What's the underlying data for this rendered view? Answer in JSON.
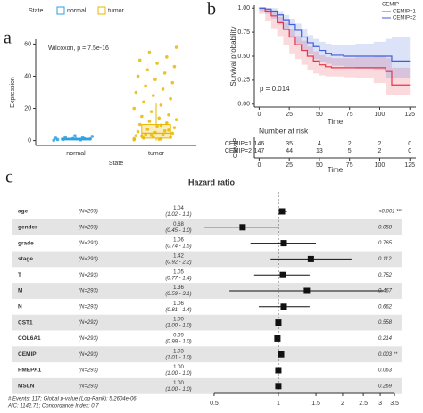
{
  "chart_data": [
    {
      "type": "box",
      "panel": "a",
      "legend_title": "State",
      "annotation": "Wilcoxon, p = 7.5e-16",
      "xlabel": "State",
      "ylabel": "Expression",
      "categories": [
        "normal",
        "tumor"
      ],
      "series": [
        {
          "name": "normal",
          "color": "#2E9FDF",
          "box": {
            "min": 0,
            "q1": 0.4,
            "median": 0.9,
            "q3": 1.4,
            "max": 2.8
          },
          "points": [
            0.2,
            0.5,
            0.8,
            1.0,
            1.2,
            1.5,
            1.8,
            2.2,
            2.6,
            3.0,
            0.6,
            1.1
          ]
        },
        {
          "name": "tumor",
          "color": "#E7B800",
          "box": {
            "min": 0,
            "q1": 1.5,
            "median": 4.5,
            "q3": 10,
            "max": 23
          },
          "points": [
            0.5,
            1,
            1.5,
            2,
            2.5,
            3,
            3.5,
            4,
            4.5,
            5,
            5.5,
            6,
            7,
            8,
            9,
            10,
            11,
            12,
            13,
            14,
            15,
            16,
            18,
            20,
            22,
            24,
            26,
            28,
            30,
            32,
            34,
            36,
            38,
            40,
            42,
            44,
            46,
            48,
            50,
            52,
            55,
            58,
            0.8,
            2.8,
            6.5,
            3.2,
            1.2,
            9.5
          ]
        }
      ],
      "ylim": [
        -3,
        63
      ],
      "yticks": [
        0,
        20,
        40,
        60
      ]
    },
    {
      "type": "survival",
      "panel": "b",
      "legend_title": "CEMIP",
      "annotation": "p = 0.014",
      "xlabel": "Time",
      "ylabel": "Survival probability",
      "x": [
        0,
        5,
        10,
        15,
        20,
        25,
        30,
        35,
        40,
        45,
        50,
        55,
        60,
        70,
        80,
        95,
        105,
        110,
        125
      ],
      "series": [
        {
          "name": "CEMIP=1",
          "color": "#E7334A",
          "values": [
            1,
            0.97,
            0.92,
            0.85,
            0.78,
            0.7,
            0.62,
            0.56,
            0.5,
            0.45,
            0.41,
            0.39,
            0.38,
            0.38,
            0.38,
            0.38,
            0.34,
            0.2,
            0.2
          ],
          "ci_lower": [
            1,
            0.94,
            0.87,
            0.79,
            0.71,
            0.62,
            0.53,
            0.47,
            0.41,
            0.36,
            0.32,
            0.3,
            0.29,
            0.29,
            0.28,
            0.27,
            0.22,
            0.1,
            0.1
          ],
          "ci_upper": [
            1,
            1,
            0.97,
            0.91,
            0.85,
            0.78,
            0.71,
            0.66,
            0.6,
            0.55,
            0.51,
            0.49,
            0.48,
            0.48,
            0.49,
            0.5,
            0.48,
            0.38,
            0.38
          ]
        },
        {
          "name": "CEMIP=2",
          "color": "#3F5FD8",
          "values": [
            1,
            0.99,
            0.97,
            0.93,
            0.88,
            0.83,
            0.77,
            0.7,
            0.64,
            0.6,
            0.56,
            0.53,
            0.51,
            0.5,
            0.5,
            0.5,
            0.5,
            0.45,
            0.45
          ],
          "ci_lower": [
            1,
            0.97,
            0.94,
            0.89,
            0.83,
            0.77,
            0.7,
            0.63,
            0.56,
            0.52,
            0.47,
            0.44,
            0.42,
            0.4,
            0.39,
            0.37,
            0.35,
            0.27,
            0.27
          ],
          "ci_upper": [
            1,
            1,
            1,
            0.97,
            0.93,
            0.89,
            0.84,
            0.78,
            0.72,
            0.68,
            0.65,
            0.63,
            0.62,
            0.62,
            0.63,
            0.65,
            0.68,
            0.7,
            0.7
          ]
        }
      ],
      "xlim": [
        -4,
        130
      ],
      "xticks": [
        0,
        25,
        50,
        75,
        100,
        125
      ],
      "ylim": [
        -0.03,
        1.03
      ],
      "yticks": [
        {
          "value": 0,
          "label": "0.00"
        },
        {
          "value": 0.25,
          "label": "0.25"
        },
        {
          "value": 0.5,
          "label": "0.50"
        },
        {
          "value": 0.75,
          "label": "0.75"
        },
        {
          "value": 1,
          "label": "1.00"
        }
      ],
      "risk_table": {
        "title": "Number at risk",
        "ylabel": "CEMIP",
        "xlabel": "Time",
        "rows": [
          {
            "name": "CEMIP=1",
            "values": [
              "146",
              "35",
              "4",
              "2",
              "2",
              "0"
            ]
          },
          {
            "name": "CEMIP=2",
            "values": [
              "147",
              "44",
              "13",
              "5",
              "2",
              "0"
            ]
          }
        ]
      }
    },
    {
      "type": "forest",
      "panel": "c",
      "title": "Hazard ratio",
      "categories": [
        "age",
        "gender",
        "grade",
        "stage",
        "T",
        "M",
        "N",
        "CST1",
        "COL6A1",
        "CEMIP",
        "PMEPA1",
        "MSLN"
      ],
      "n_labels": [
        "(N=293)",
        "(N=293)",
        "(N=293)",
        "(N=293)",
        "(N=293)",
        "(N=293)",
        "(N=293)",
        "(N=292)",
        "(N=293)",
        "(N=293)",
        "(N=293)",
        "(N=293)"
      ],
      "values": [
        1.04,
        0.68,
        1.06,
        1.42,
        1.05,
        1.36,
        1.06,
        1,
        0.99,
        1.03,
        1,
        1
      ],
      "value_labels": [
        "1.04",
        "0.68",
        "1.06",
        "1.42",
        "1.05",
        "1.36",
        "1.06",
        "1.00",
        "0.99",
        "1.03",
        "1.00",
        "1.00"
      ],
      "ci_labels": [
        "(1.02 - 1.1)",
        "(0.45 - 1.0)",
        "(0.74 - 1.5)",
        "(0.92 - 2.2)",
        "(0.77 - 1.4)",
        "(0.59 - 3.1)",
        "(0.81 - 1.4)",
        "(1.00 - 1.0)",
        "(0.99 - 1.0)",
        "(1.01 - 1.0)",
        "(1.00 - 1.0)",
        "(1.00 - 1.0)"
      ],
      "lower": [
        1.02,
        0.45,
        0.74,
        0.92,
        0.77,
        0.59,
        0.81,
        1,
        0.99,
        1.01,
        1,
        1
      ],
      "upper": [
        1.1,
        1.0,
        1.5,
        2.2,
        1.4,
        3.1,
        1.4,
        1.0,
        1.0,
        1.05,
        1.0,
        1.0
      ],
      "p_labels": [
        "<0.001 ***",
        "0.058",
        "0.765",
        "0.112",
        "0.752",
        "0.467",
        "0.662",
        "0.558",
        "0.214",
        "0.003 **",
        "0.063",
        "0.269"
      ],
      "log_x": true,
      "reference": 1,
      "xlim": [
        0.45,
        3.6
      ],
      "xticks": [
        0.5,
        1,
        1.5,
        2,
        2.5,
        3,
        3.5
      ],
      "footnotes": [
        "# Events: 117; Global p-value (Log-Rank): 5.2604e-06",
        "AIC: 1142.71; Concordance Index: 0.7"
      ]
    }
  ]
}
